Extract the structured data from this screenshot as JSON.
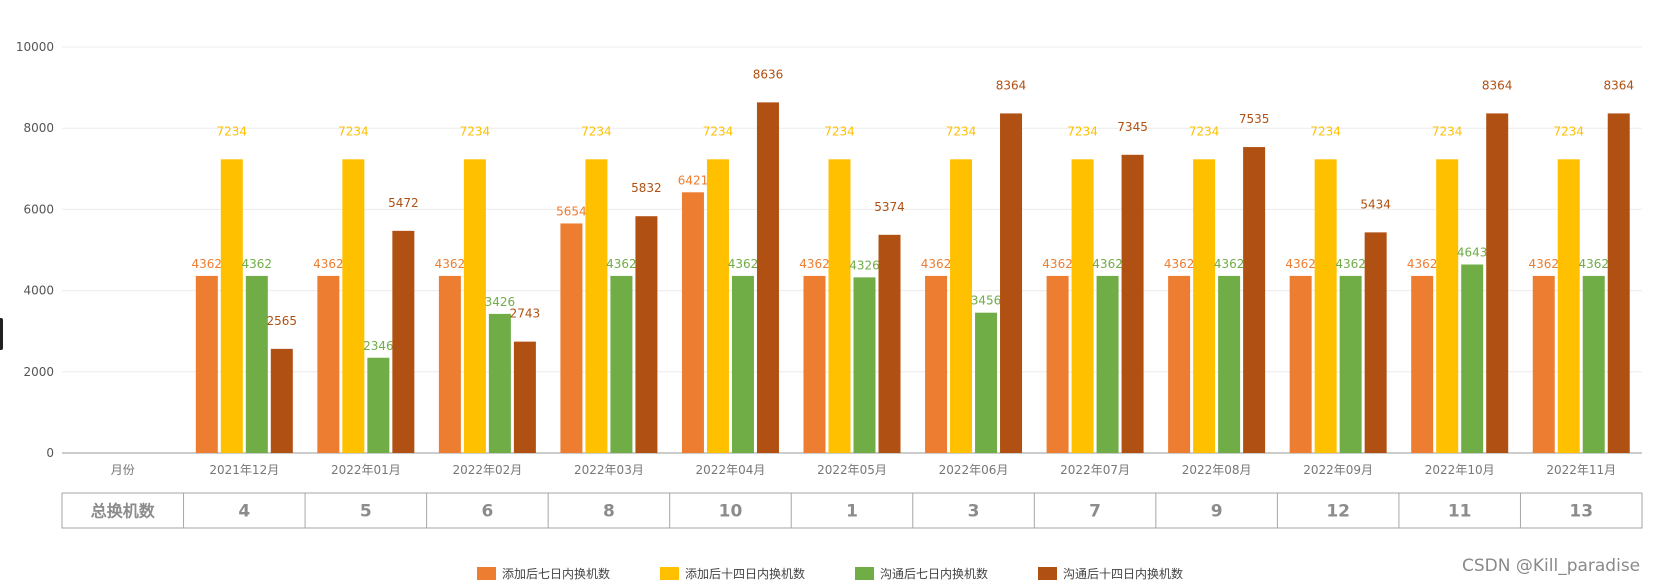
{
  "chart_data": {
    "type": "bar",
    "categories": [
      "月份",
      "2021年12月",
      "2022年01月",
      "2022年02月",
      "2022年03月",
      "2022年04月",
      "2022年05月",
      "2022年06月",
      "2022年07月",
      "2022年08月",
      "2022年09月",
      "2022年10月",
      "2022年11月"
    ],
    "ylim": [
      0,
      10000
    ],
    "yticks": [
      0,
      2000,
      4000,
      6000,
      8000,
      10000
    ],
    "grid": true,
    "legend_position": "bottom",
    "series": [
      {
        "name": "添加后七日内换机数",
        "color": "#ED7D31",
        "values": [
          null,
          4362,
          4362,
          4362,
          5654,
          6421,
          4362,
          4362,
          4362,
          4362,
          4362,
          4362,
          4362
        ]
      },
      {
        "name": "添加后十四日内换机数",
        "color": "#FFC000",
        "values": [
          null,
          7234,
          7234,
          7234,
          7234,
          7234,
          7234,
          7234,
          7234,
          7234,
          7234,
          7234,
          7234
        ]
      },
      {
        "name": "沟通后七日内换机数",
        "color": "#70AD47",
        "values": [
          null,
          4362,
          2346,
          3426,
          4362,
          4362,
          4326,
          3456,
          4362,
          4362,
          4362,
          4643,
          4362
        ]
      },
      {
        "name": "沟通后十四日内换机数",
        "color": "#B05012",
        "values": [
          null,
          2565,
          5472,
          2743,
          5832,
          8636,
          5374,
          8364,
          7345,
          7535,
          5434,
          8364,
          8364
        ]
      }
    ],
    "table": {
      "row_label": "总换机数",
      "values": [
        "4",
        "5",
        "6",
        "8",
        "10",
        "1",
        "3",
        "7",
        "9",
        "12",
        "11",
        "13"
      ]
    }
  },
  "watermark": "CSDN @Kill_paradise"
}
